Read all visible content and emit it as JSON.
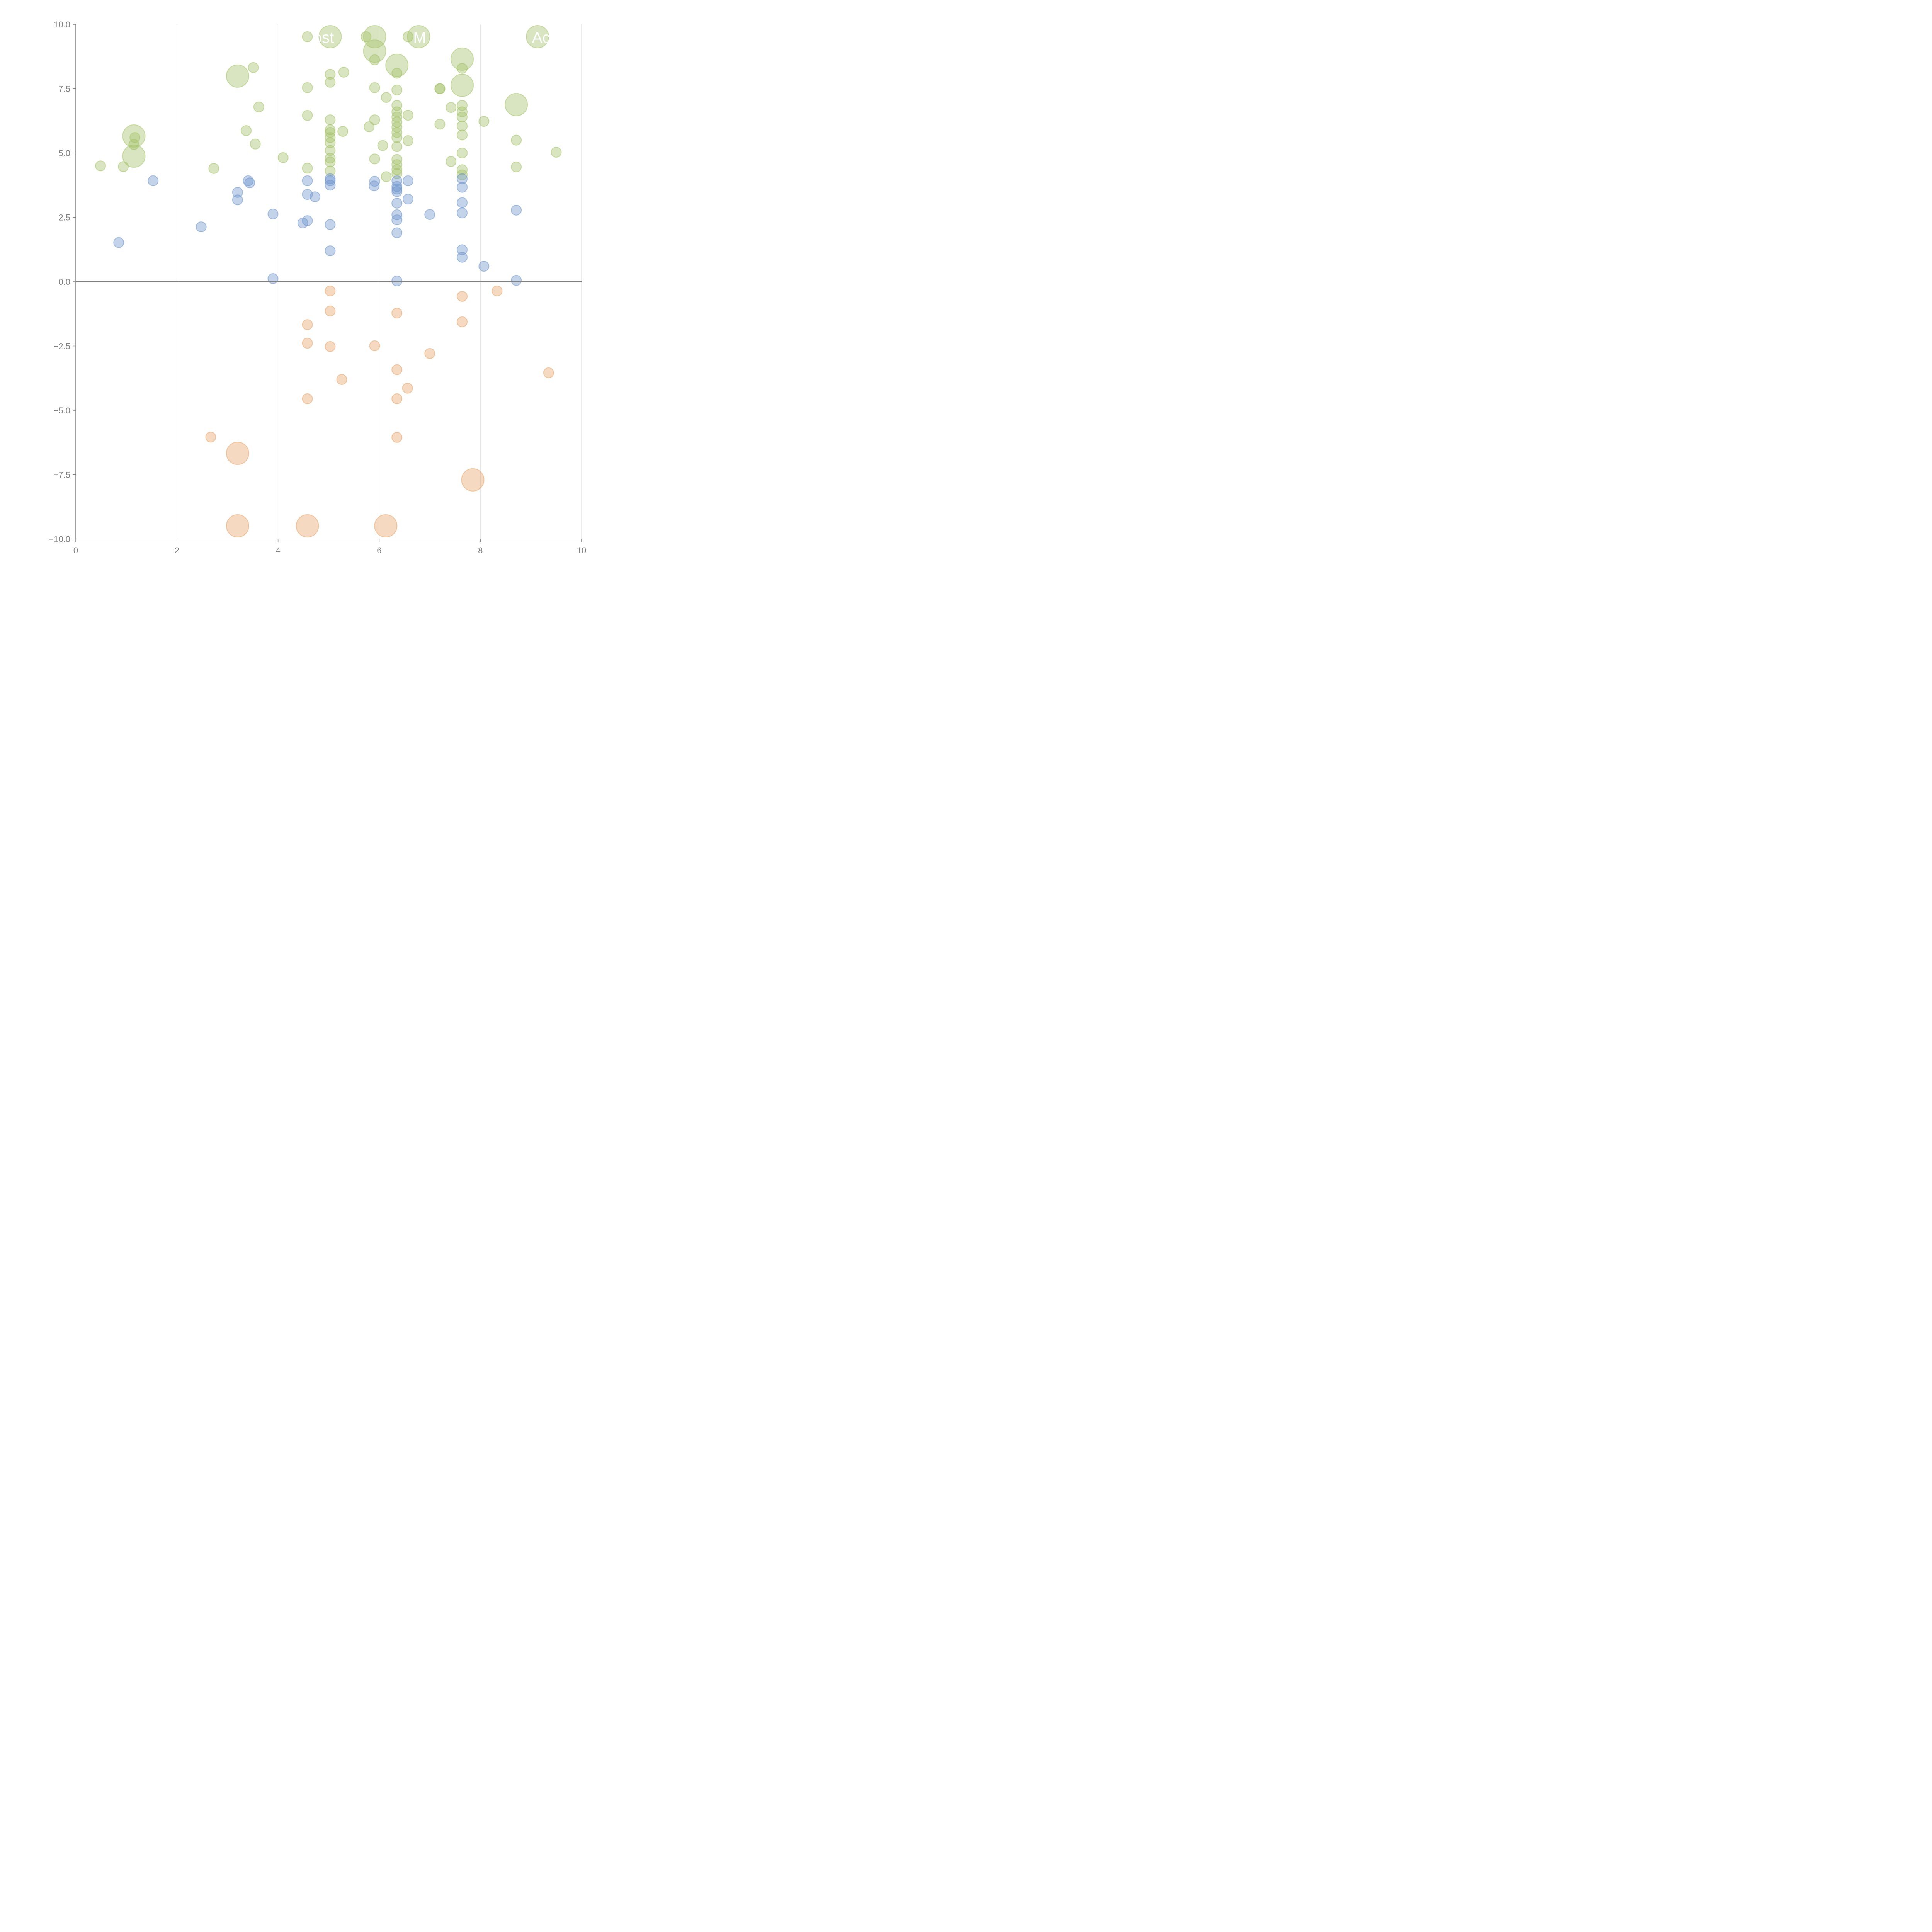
{
  "chart_data": {
    "type": "scatter",
    "title": "",
    "xlabel": "",
    "ylabel": "",
    "xlim": [
      0,
      10
    ],
    "ylim": [
      -10,
      10
    ],
    "x_ticks": [
      "0",
      "2",
      "4",
      "6",
      "8",
      "10"
    ],
    "x_tick_values": [
      0,
      2,
      4,
      6,
      8,
      10
    ],
    "y_ticks": [
      "−10.0",
      "−7.5",
      "−5.0",
      "−2.5",
      "0.0",
      "2.5",
      "5.0",
      "7.5",
      "10.0"
    ],
    "y_tick_values": [
      -10,
      -7.5,
      -5,
      -2.5,
      0,
      2.5,
      5,
      7.5,
      10
    ],
    "grid": "vertical lines at x ticks",
    "zero_line": true,
    "legend": "none",
    "overlay_labels": [
      {
        "text": "ost",
        "x": 4.9,
        "y": 9.5
      },
      {
        "text": "M",
        "x": 6.8,
        "y": 9.5
      },
      {
        "text": "Ac",
        "x": 9.2,
        "y": 9.5
      }
    ],
    "series": [
      {
        "name": "green",
        "color": "#a5c26a",
        "points": [
          [
            0.49,
            4.5,
            1
          ],
          [
            0.94,
            4.47,
            1
          ],
          [
            1.15,
            5.66,
            2.5
          ],
          [
            1.17,
            5.6,
            1
          ],
          [
            1.15,
            5.33,
            1
          ],
          [
            1.15,
            4.88,
            2.5
          ],
          [
            2.73,
            4.4,
            1
          ],
          [
            3.2,
            7.99,
            2.5
          ],
          [
            3.51,
            8.32,
            1
          ],
          [
            3.62,
            6.79,
            1
          ],
          [
            3.37,
            5.87,
            1
          ],
          [
            3.55,
            5.35,
            1
          ],
          [
            4.1,
            4.82,
            1
          ],
          [
            4.58,
            9.52,
            1
          ],
          [
            4.58,
            7.54,
            1
          ],
          [
            4.58,
            6.46,
            1
          ],
          [
            4.58,
            4.41,
            1
          ],
          [
            5.03,
            9.52,
            2.5
          ],
          [
            5.03,
            8.06,
            1
          ],
          [
            5.03,
            7.75,
            1
          ],
          [
            5.03,
            6.29,
            1
          ],
          [
            5.03,
            5.9,
            1
          ],
          [
            5.03,
            5.8,
            1
          ],
          [
            5.03,
            5.6,
            1
          ],
          [
            5.03,
            5.4,
            1
          ],
          [
            5.03,
            5.1,
            1
          ],
          [
            5.03,
            4.8,
            1
          ],
          [
            5.03,
            4.65,
            1
          ],
          [
            5.03,
            4.3,
            1
          ],
          [
            5.3,
            8.14,
            1
          ],
          [
            5.28,
            5.84,
            1
          ],
          [
            5.74,
            9.52,
            1
          ],
          [
            5.91,
            9.52,
            2.5
          ],
          [
            5.91,
            8.96,
            2.5
          ],
          [
            5.91,
            8.62,
            1
          ],
          [
            5.91,
            7.54,
            1
          ],
          [
            5.91,
            6.29,
            1
          ],
          [
            5.8,
            6.02,
            1
          ],
          [
            5.91,
            4.77,
            1
          ],
          [
            6.14,
            7.16,
            1
          ],
          [
            6.07,
            5.29,
            1
          ],
          [
            6.14,
            4.08,
            1
          ],
          [
            6.35,
            8.41,
            2.5
          ],
          [
            6.35,
            8.1,
            1
          ],
          [
            6.35,
            7.45,
            1
          ],
          [
            6.35,
            6.85,
            1
          ],
          [
            6.35,
            6.6,
            1
          ],
          [
            6.35,
            6.4,
            1
          ],
          [
            6.35,
            6.2,
            1
          ],
          [
            6.35,
            6.0,
            1
          ],
          [
            6.35,
            5.8,
            1
          ],
          [
            6.35,
            5.6,
            1
          ],
          [
            6.35,
            5.25,
            1
          ],
          [
            6.35,
            4.75,
            1
          ],
          [
            6.35,
            4.55,
            1
          ],
          [
            6.35,
            4.35,
            1
          ],
          [
            6.35,
            4.2,
            1
          ],
          [
            6.57,
            9.52,
            1
          ],
          [
            6.78,
            9.52,
            2.5
          ],
          [
            6.57,
            6.47,
            1
          ],
          [
            6.57,
            5.48,
            1
          ],
          [
            7.2,
            7.5,
            1
          ],
          [
            7.2,
            7.5,
            1
          ],
          [
            7.2,
            6.12,
            1
          ],
          [
            7.42,
            6.77,
            1
          ],
          [
            7.42,
            4.67,
            1
          ],
          [
            7.64,
            8.65,
            2.5
          ],
          [
            7.64,
            8.29,
            1
          ],
          [
            7.64,
            7.63,
            2.5
          ],
          [
            7.64,
            6.85,
            1
          ],
          [
            7.64,
            6.6,
            1
          ],
          [
            7.64,
            6.4,
            1
          ],
          [
            7.64,
            6.05,
            1
          ],
          [
            7.64,
            5.7,
            1
          ],
          [
            7.64,
            5.0,
            1
          ],
          [
            7.64,
            4.35,
            1
          ],
          [
            7.64,
            4.15,
            1
          ],
          [
            8.07,
            6.23,
            1
          ],
          [
            8.71,
            6.88,
            2.5
          ],
          [
            8.71,
            5.5,
            1
          ],
          [
            8.71,
            4.46,
            1
          ],
          [
            9.13,
            9.52,
            2.5
          ],
          [
            9.5,
            5.03,
            1
          ]
        ]
      },
      {
        "name": "blue",
        "color": "#6f95cc",
        "points": [
          [
            0.85,
            1.52,
            1
          ],
          [
            1.53,
            3.92,
            1
          ],
          [
            2.48,
            2.13,
            1
          ],
          [
            3.2,
            3.47,
            1
          ],
          [
            3.2,
            3.18,
            1
          ],
          [
            3.41,
            3.92,
            1
          ],
          [
            3.44,
            3.84,
            1
          ],
          [
            3.9,
            2.63,
            1
          ],
          [
            3.9,
            0.12,
            1
          ],
          [
            4.49,
            2.28,
            1
          ],
          [
            4.58,
            2.37,
            1
          ],
          [
            4.58,
            3.92,
            1
          ],
          [
            4.58,
            3.39,
            1
          ],
          [
            4.73,
            3.3,
            1
          ],
          [
            5.03,
            4.0,
            1
          ],
          [
            5.03,
            3.92,
            1
          ],
          [
            5.03,
            3.75,
            1
          ],
          [
            5.03,
            2.22,
            1
          ],
          [
            5.03,
            1.2,
            1
          ],
          [
            5.91,
            3.9,
            1
          ],
          [
            5.9,
            3.72,
            1
          ],
          [
            6.35,
            3.92,
            1
          ],
          [
            6.35,
            3.7,
            1
          ],
          [
            6.35,
            3.6,
            1
          ],
          [
            6.35,
            3.5,
            1
          ],
          [
            6.35,
            3.05,
            1
          ],
          [
            6.35,
            2.6,
            1
          ],
          [
            6.35,
            2.4,
            1
          ],
          [
            6.35,
            1.9,
            1
          ],
          [
            6.35,
            0.03,
            1
          ],
          [
            6.57,
            3.92,
            1
          ],
          [
            6.57,
            3.21,
            1
          ],
          [
            7.0,
            2.61,
            1
          ],
          [
            7.64,
            4.0,
            1
          ],
          [
            7.64,
            3.67,
            1
          ],
          [
            7.64,
            3.07,
            1
          ],
          [
            7.64,
            2.67,
            1
          ],
          [
            7.64,
            1.24,
            1
          ],
          [
            7.64,
            0.95,
            1
          ],
          [
            8.07,
            0.6,
            1
          ],
          [
            8.71,
            2.78,
            1
          ],
          [
            8.71,
            0.05,
            1
          ]
        ]
      },
      {
        "name": "orange",
        "color": "#e8a46a",
        "points": [
          [
            5.03,
            -0.36,
            1
          ],
          [
            5.03,
            -1.14,
            1
          ],
          [
            4.58,
            -1.67,
            1
          ],
          [
            4.58,
            -2.39,
            1
          ],
          [
            5.03,
            -2.52,
            1
          ],
          [
            5.91,
            -2.49,
            1
          ],
          [
            6.35,
            -1.22,
            1
          ],
          [
            7.64,
            -0.57,
            1
          ],
          [
            7.64,
            -1.56,
            1
          ],
          [
            8.33,
            -0.36,
            1
          ],
          [
            7.0,
            -2.79,
            1
          ],
          [
            6.35,
            -3.42,
            1
          ],
          [
            5.26,
            -3.8,
            1
          ],
          [
            6.56,
            -4.14,
            1
          ],
          [
            6.35,
            -4.55,
            1
          ],
          [
            4.58,
            -4.55,
            1
          ],
          [
            9.35,
            -3.54,
            1
          ],
          [
            2.67,
            -6.04,
            1
          ],
          [
            6.35,
            -6.05,
            1
          ],
          [
            3.2,
            -6.67,
            2.5
          ],
          [
            7.85,
            -7.7,
            2.5
          ],
          [
            3.2,
            -9.49,
            2.5
          ],
          [
            4.58,
            -9.49,
            2.5
          ],
          [
            6.13,
            -9.49,
            2.5
          ]
        ]
      }
    ]
  }
}
